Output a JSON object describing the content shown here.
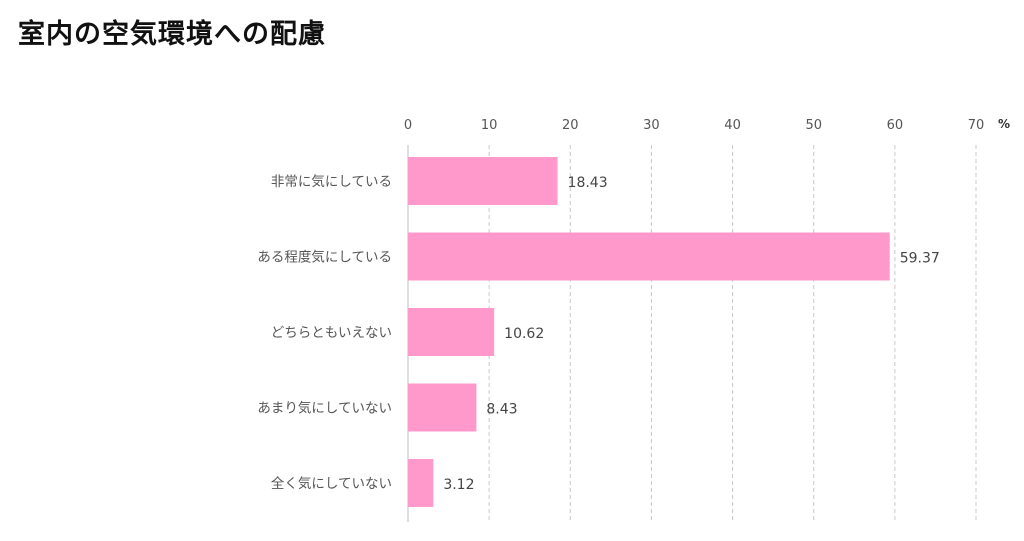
{
  "title": "室内の空気環境への配慮",
  "chart_data": {
    "type": "bar",
    "orientation": "horizontal",
    "title": "室内の空気環境への配慮",
    "unit": "%",
    "categories": [
      "非常に気にしている",
      "ある程度気にしている",
      "どちらともいえない",
      "あまり気にしていない",
      "全く気にしていない"
    ],
    "values": [
      18.43,
      59.37,
      10.62,
      8.43,
      3.12
    ],
    "xlim": [
      0,
      70
    ],
    "xticks": [
      0,
      10,
      20,
      30,
      40,
      50,
      60,
      70
    ],
    "grid": true,
    "grid_style": "dashed",
    "legend": "none",
    "bar_color": "#ff99cc"
  }
}
